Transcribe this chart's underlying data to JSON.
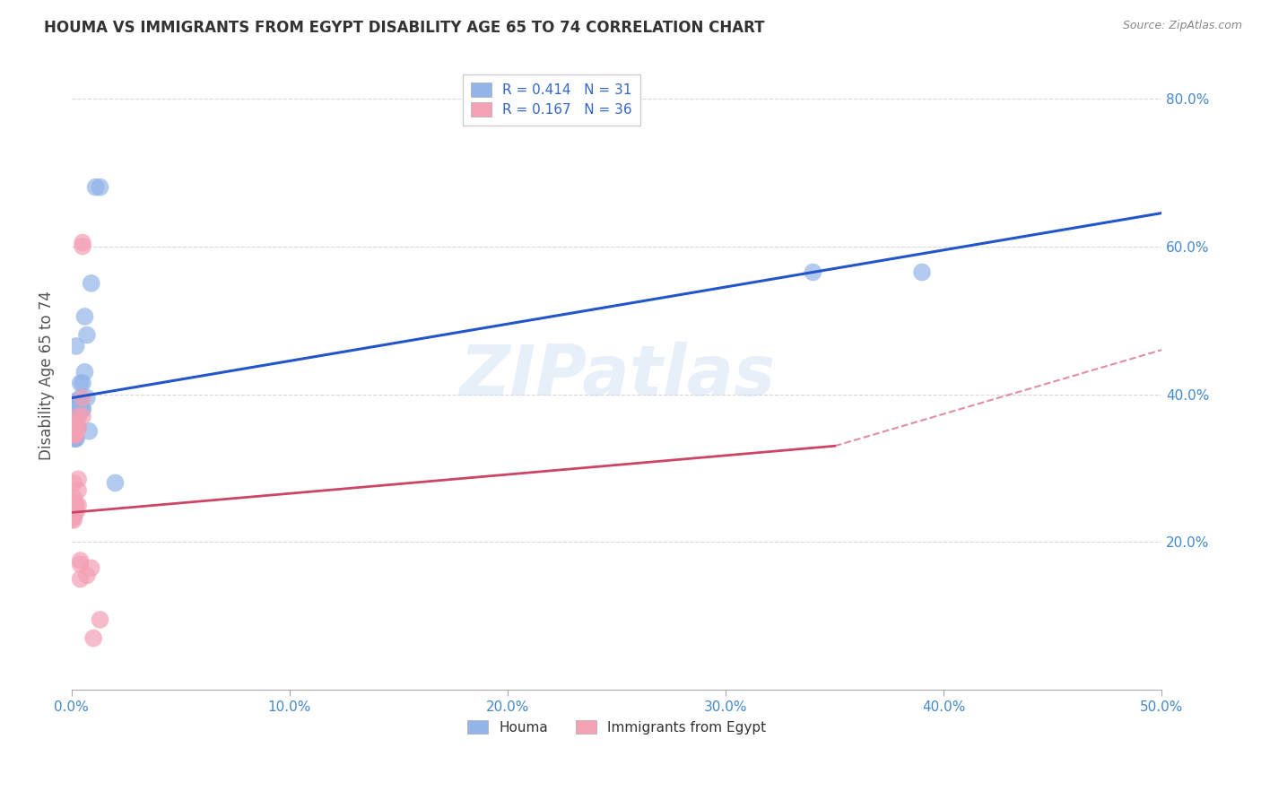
{
  "title": "HOUMA VS IMMIGRANTS FROM EGYPT DISABILITY AGE 65 TO 74 CORRELATION CHART",
  "source": "Source: ZipAtlas.com",
  "ylabel": "Disability Age 65 to 74",
  "ylabel_right_ticks": [
    "20.0%",
    "40.0%",
    "60.0%",
    "80.0%"
  ],
  "legend_blue_r": "R = 0.414",
  "legend_blue_n": "N = 31",
  "legend_pink_r": "R = 0.167",
  "legend_pink_n": "N = 36",
  "houma_color": "#92b4e8",
  "egypt_color": "#f4a0b5",
  "houma_line_color": "#2255cc",
  "egypt_line_color": "#cc4466",
  "houma_points": [
    [
      0.0,
      0.385
    ],
    [
      0.001,
      0.345
    ],
    [
      0.001,
      0.34
    ],
    [
      0.001,
      0.39
    ],
    [
      0.002,
      0.465
    ],
    [
      0.002,
      0.355
    ],
    [
      0.002,
      0.355
    ],
    [
      0.002,
      0.34
    ],
    [
      0.002,
      0.34
    ],
    [
      0.003,
      0.355
    ],
    [
      0.003,
      0.37
    ],
    [
      0.003,
      0.38
    ],
    [
      0.003,
      0.385
    ],
    [
      0.004,
      0.395
    ],
    [
      0.004,
      0.385
    ],
    [
      0.004,
      0.385
    ],
    [
      0.004,
      0.415
    ],
    [
      0.005,
      0.415
    ],
    [
      0.005,
      0.38
    ],
    [
      0.005,
      0.38
    ],
    [
      0.006,
      0.43
    ],
    [
      0.006,
      0.505
    ],
    [
      0.007,
      0.48
    ],
    [
      0.007,
      0.395
    ],
    [
      0.008,
      0.35
    ],
    [
      0.009,
      0.55
    ],
    [
      0.011,
      0.68
    ],
    [
      0.013,
      0.68
    ],
    [
      0.02,
      0.28
    ],
    [
      0.34,
      0.565
    ],
    [
      0.39,
      0.565
    ]
  ],
  "egypt_points": [
    [
      0.0,
      0.235
    ],
    [
      0.0,
      0.24
    ],
    [
      0.0,
      0.245
    ],
    [
      0.0,
      0.245
    ],
    [
      0.0,
      0.255
    ],
    [
      0.0,
      0.25
    ],
    [
      0.0,
      0.24
    ],
    [
      0.0,
      0.23
    ],
    [
      0.001,
      0.235
    ],
    [
      0.001,
      0.23
    ],
    [
      0.001,
      0.25
    ],
    [
      0.001,
      0.26
    ],
    [
      0.001,
      0.28
    ],
    [
      0.001,
      0.345
    ],
    [
      0.002,
      0.24
    ],
    [
      0.002,
      0.245
    ],
    [
      0.002,
      0.25
    ],
    [
      0.002,
      0.345
    ],
    [
      0.002,
      0.36
    ],
    [
      0.002,
      0.35
    ],
    [
      0.003,
      0.25
    ],
    [
      0.003,
      0.27
    ],
    [
      0.003,
      0.285
    ],
    [
      0.003,
      0.355
    ],
    [
      0.003,
      0.37
    ],
    [
      0.004,
      0.15
    ],
    [
      0.004,
      0.17
    ],
    [
      0.004,
      0.175
    ],
    [
      0.005,
      0.6
    ],
    [
      0.005,
      0.605
    ],
    [
      0.005,
      0.395
    ],
    [
      0.005,
      0.37
    ],
    [
      0.007,
      0.155
    ],
    [
      0.009,
      0.165
    ],
    [
      0.01,
      0.07
    ],
    [
      0.013,
      0.095
    ]
  ],
  "houma_trendline": [
    [
      0.0,
      0.395
    ],
    [
      0.5,
      0.645
    ]
  ],
  "egypt_trendline": [
    [
      0.0,
      0.24
    ],
    [
      0.35,
      0.33
    ]
  ],
  "egypt_trendline_dashed": [
    [
      0.0,
      0.33
    ],
    [
      0.5,
      0.46
    ]
  ],
  "xlim": [
    0.0,
    0.5
  ],
  "ylim": [
    0.0,
    0.85
  ],
  "background_color": "#ffffff",
  "grid_color": "#d8d8d8",
  "watermark": "ZIPatlas"
}
